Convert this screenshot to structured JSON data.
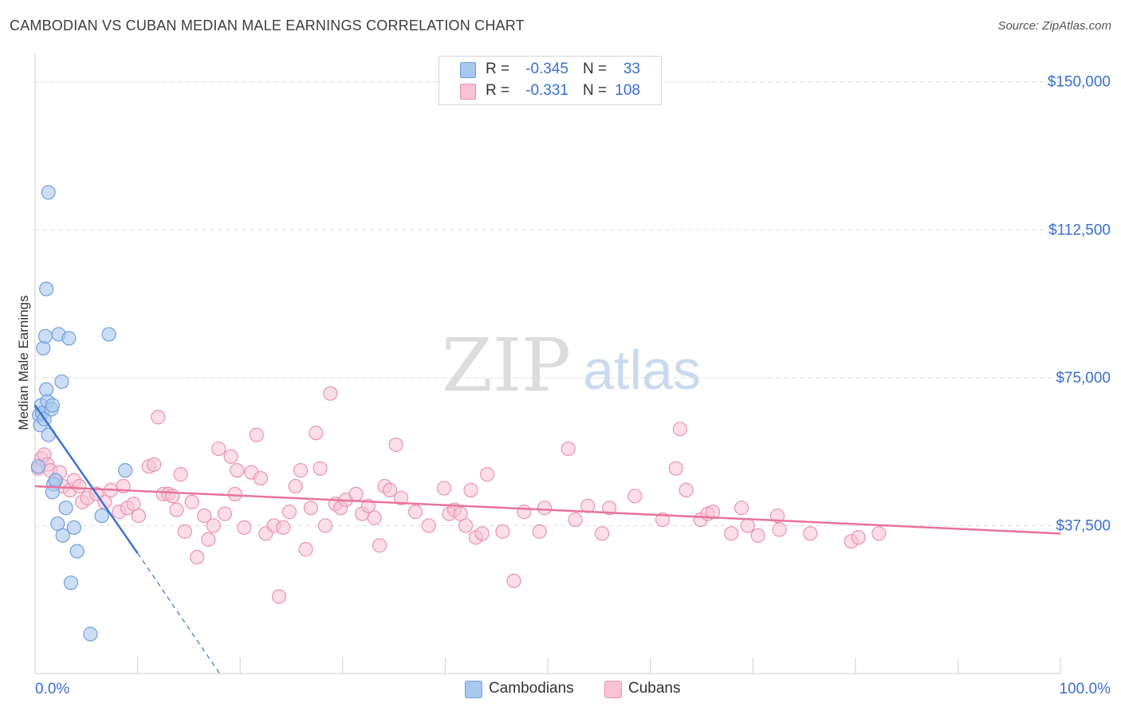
{
  "header": {
    "title": "CAMBODIAN VS CUBAN MEDIAN MALE EARNINGS CORRELATION CHART",
    "source": "Source: ZipAtlas.com"
  },
  "watermark": {
    "zip": "ZIP",
    "atlas": "atlas"
  },
  "legend": {
    "rows": [
      {
        "r_label": "R =",
        "r_value": "-0.345",
        "n_label": "N =",
        "n_value": "33",
        "color": "#8fb6ea"
      },
      {
        "r_label": "R =",
        "r_value": "-0.331",
        "n_label": "N =",
        "n_value": "108",
        "color": "#f2a3bd"
      }
    ]
  },
  "bottom_legend": {
    "items": [
      {
        "label": "Cambodians",
        "color": "#8fb6ea"
      },
      {
        "label": "Cubans",
        "color": "#f2a3bd"
      }
    ]
  },
  "chart_data": {
    "type": "scatter",
    "title": "CAMBODIAN VS CUBAN MEDIAN MALE EARNINGS CORRELATION CHART",
    "xlabel": "",
    "ylabel": "Median Male Earnings",
    "xlim": [
      0,
      100
    ],
    "ylim": [
      0,
      155000
    ],
    "x_tick_labels": [
      "0.0%",
      "100.0%"
    ],
    "y_ticks": [
      37500,
      75000,
      112500,
      150000
    ],
    "y_tick_labels": [
      "$37,500",
      "$75,000",
      "$112,500",
      "$150,000"
    ],
    "grid": true,
    "series": [
      {
        "name": "Cambodians",
        "color": "#3b72d4",
        "fill": "#a9c8f0",
        "r": -0.345,
        "n": 33,
        "trend": {
          "x0": 0,
          "y0": 68000,
          "x1": 10,
          "y1": 30500,
          "dash_x1": 18,
          "dash_y1": 0
        },
        "points": [
          {
            "x": 0.3,
            "y": 52500
          },
          {
            "x": 0.4,
            "y": 65500
          },
          {
            "x": 0.5,
            "y": 63000
          },
          {
            "x": 0.6,
            "y": 68000
          },
          {
            "x": 0.7,
            "y": 66000
          },
          {
            "x": 0.8,
            "y": 82500
          },
          {
            "x": 0.9,
            "y": 64500
          },
          {
            "x": 1.0,
            "y": 85500
          },
          {
            "x": 1.1,
            "y": 72000
          },
          {
            "x": 1.2,
            "y": 69000
          },
          {
            "x": 1.3,
            "y": 60500
          },
          {
            "x": 1.1,
            "y": 97500
          },
          {
            "x": 1.3,
            "y": 122000
          },
          {
            "x": 1.6,
            "y": 67000
          },
          {
            "x": 1.7,
            "y": 68000
          },
          {
            "x": 1.8,
            "y": 48000
          },
          {
            "x": 1.7,
            "y": 46000
          },
          {
            "x": 2.0,
            "y": 49000
          },
          {
            "x": 2.2,
            "y": 38000
          },
          {
            "x": 2.3,
            "y": 86000
          },
          {
            "x": 2.6,
            "y": 74000
          },
          {
            "x": 2.7,
            "y": 35000
          },
          {
            "x": 3.0,
            "y": 42000
          },
          {
            "x": 3.3,
            "y": 85000
          },
          {
            "x": 3.5,
            "y": 23000
          },
          {
            "x": 3.8,
            "y": 37000
          },
          {
            "x": 4.1,
            "y": 31000
          },
          {
            "x": 5.4,
            "y": 10000
          },
          {
            "x": 6.5,
            "y": 40000
          },
          {
            "x": 7.2,
            "y": 86000
          },
          {
            "x": 8.8,
            "y": 51500
          }
        ]
      },
      {
        "name": "Cubans",
        "color": "#e8739a",
        "fill": "#f7c2d3",
        "r": -0.331,
        "n": 108,
        "trend": {
          "x0": 0,
          "y0": 47500,
          "x1": 100,
          "y1": 35500
        },
        "points": [
          {
            "x": 0.3,
            "y": 52000
          },
          {
            "x": 0.6,
            "y": 54500
          },
          {
            "x": 0.9,
            "y": 55500
          },
          {
            "x": 1.2,
            "y": 53000
          },
          {
            "x": 1.5,
            "y": 51500
          },
          {
            "x": 2.0,
            "y": 49000
          },
          {
            "x": 2.4,
            "y": 51000
          },
          {
            "x": 2.7,
            "y": 47500
          },
          {
            "x": 3.4,
            "y": 46500
          },
          {
            "x": 3.8,
            "y": 49000
          },
          {
            "x": 4.3,
            "y": 47500
          },
          {
            "x": 4.6,
            "y": 43500
          },
          {
            "x": 5.1,
            "y": 44500
          },
          {
            "x": 6.0,
            "y": 45500
          },
          {
            "x": 6.8,
            "y": 43500
          },
          {
            "x": 7.4,
            "y": 46500
          },
          {
            "x": 8.2,
            "y": 41000
          },
          {
            "x": 8.6,
            "y": 47500
          },
          {
            "x": 9.0,
            "y": 42000
          },
          {
            "x": 9.6,
            "y": 43000
          },
          {
            "x": 10.1,
            "y": 40000
          },
          {
            "x": 11.1,
            "y": 52500
          },
          {
            "x": 11.6,
            "y": 53000
          },
          {
            "x": 12.0,
            "y": 65000
          },
          {
            "x": 12.5,
            "y": 45500
          },
          {
            "x": 13.0,
            "y": 45500
          },
          {
            "x": 13.4,
            "y": 45000
          },
          {
            "x": 13.8,
            "y": 41500
          },
          {
            "x": 14.2,
            "y": 50500
          },
          {
            "x": 14.6,
            "y": 36000
          },
          {
            "x": 15.3,
            "y": 43500
          },
          {
            "x": 15.8,
            "y": 29500
          },
          {
            "x": 16.5,
            "y": 40000
          },
          {
            "x": 16.9,
            "y": 34000
          },
          {
            "x": 17.4,
            "y": 37500
          },
          {
            "x": 17.9,
            "y": 57000
          },
          {
            "x": 18.5,
            "y": 40500
          },
          {
            "x": 19.1,
            "y": 55000
          },
          {
            "x": 19.5,
            "y": 45500
          },
          {
            "x": 19.7,
            "y": 51500
          },
          {
            "x": 20.4,
            "y": 37000
          },
          {
            "x": 21.1,
            "y": 51000
          },
          {
            "x": 21.6,
            "y": 60500
          },
          {
            "x": 22.0,
            "y": 49500
          },
          {
            "x": 22.5,
            "y": 35500
          },
          {
            "x": 23.3,
            "y": 37500
          },
          {
            "x": 23.8,
            "y": 19500
          },
          {
            "x": 24.2,
            "y": 37000
          },
          {
            "x": 24.8,
            "y": 41000
          },
          {
            "x": 25.4,
            "y": 47500
          },
          {
            "x": 25.9,
            "y": 51500
          },
          {
            "x": 26.4,
            "y": 31500
          },
          {
            "x": 26.9,
            "y": 42000
          },
          {
            "x": 27.4,
            "y": 61000
          },
          {
            "x": 27.8,
            "y": 52000
          },
          {
            "x": 28.3,
            "y": 37500
          },
          {
            "x": 28.8,
            "y": 71000
          },
          {
            "x": 29.3,
            "y": 43000
          },
          {
            "x": 29.8,
            "y": 42000
          },
          {
            "x": 30.3,
            "y": 44000
          },
          {
            "x": 31.3,
            "y": 45500
          },
          {
            "x": 31.9,
            "y": 40500
          },
          {
            "x": 32.5,
            "y": 42500
          },
          {
            "x": 33.1,
            "y": 39500
          },
          {
            "x": 33.6,
            "y": 32500
          },
          {
            "x": 34.1,
            "y": 47500
          },
          {
            "x": 34.6,
            "y": 46500
          },
          {
            "x": 35.2,
            "y": 58000
          },
          {
            "x": 35.7,
            "y": 44500
          },
          {
            "x": 37.1,
            "y": 41000
          },
          {
            "x": 38.4,
            "y": 37500
          },
          {
            "x": 39.9,
            "y": 47000
          },
          {
            "x": 40.4,
            "y": 40500
          },
          {
            "x": 40.9,
            "y": 41500
          },
          {
            "x": 41.5,
            "y": 40500
          },
          {
            "x": 42.0,
            "y": 37500
          },
          {
            "x": 42.5,
            "y": 46500
          },
          {
            "x": 43.0,
            "y": 34500
          },
          {
            "x": 43.6,
            "y": 35500
          },
          {
            "x": 44.1,
            "y": 50500
          },
          {
            "x": 45.6,
            "y": 36000
          },
          {
            "x": 46.7,
            "y": 23500
          },
          {
            "x": 47.7,
            "y": 41000
          },
          {
            "x": 49.2,
            "y": 36000
          },
          {
            "x": 49.7,
            "y": 42000
          },
          {
            "x": 52.0,
            "y": 57000
          },
          {
            "x": 52.7,
            "y": 39000
          },
          {
            "x": 53.9,
            "y": 42500
          },
          {
            "x": 55.3,
            "y": 35500
          },
          {
            "x": 56.0,
            "y": 42000
          },
          {
            "x": 58.5,
            "y": 45000
          },
          {
            "x": 61.2,
            "y": 39000
          },
          {
            "x": 62.5,
            "y": 52000
          },
          {
            "x": 62.9,
            "y": 62000
          },
          {
            "x": 63.5,
            "y": 46500
          },
          {
            "x": 64.9,
            "y": 39000
          },
          {
            "x": 65.6,
            "y": 40500
          },
          {
            "x": 66.1,
            "y": 41000
          },
          {
            "x": 67.9,
            "y": 35500
          },
          {
            "x": 68.9,
            "y": 42000
          },
          {
            "x": 69.5,
            "y": 37500
          },
          {
            "x": 70.5,
            "y": 35000
          },
          {
            "x": 72.4,
            "y": 40000
          },
          {
            "x": 72.6,
            "y": 36500
          },
          {
            "x": 75.6,
            "y": 35500
          },
          {
            "x": 79.6,
            "y": 33500
          },
          {
            "x": 80.3,
            "y": 34500
          },
          {
            "x": 82.3,
            "y": 35500
          }
        ]
      }
    ]
  }
}
